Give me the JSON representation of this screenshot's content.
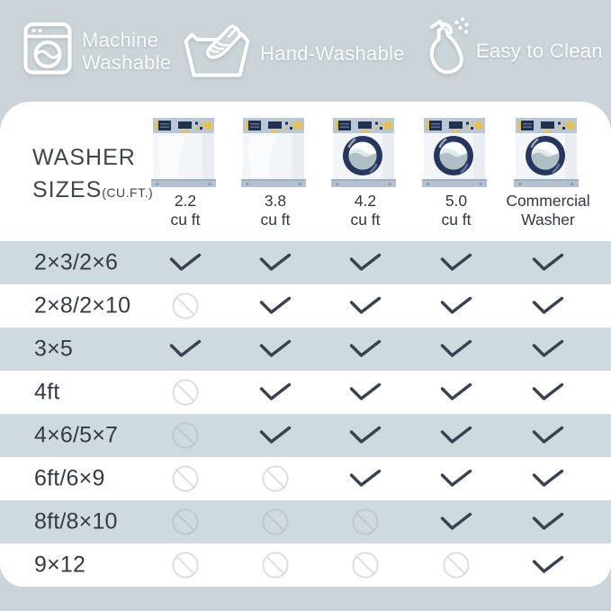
{
  "banner": {
    "items": [
      {
        "icon": "washing-machine-icon",
        "label_lines": [
          "Machine",
          "Washable"
        ]
      },
      {
        "icon": "hand-wash-icon",
        "label_lines": [
          "Hand-Washable"
        ]
      },
      {
        "icon": "spray-bottle-icon",
        "label_lines": [
          "Easy to Clean"
        ]
      }
    ]
  },
  "table": {
    "corner_title": {
      "line1": "WASHER",
      "line2": "SIZES",
      "suffix": "(CU.FT.)"
    },
    "columns": [
      {
        "washer_type": "top-load",
        "label_lines": [
          "2.2",
          "cu ft"
        ]
      },
      {
        "washer_type": "top-load",
        "label_lines": [
          "3.8",
          "cu ft"
        ]
      },
      {
        "washer_type": "front-load",
        "label_lines": [
          "4.2",
          "cu ft"
        ]
      },
      {
        "washer_type": "front-load",
        "label_lines": [
          "5.0",
          "cu ft"
        ]
      },
      {
        "washer_type": "front-load",
        "label_lines": [
          "Commercial",
          "Washer"
        ]
      }
    ],
    "rows": [
      {
        "label": "2×3/2×6",
        "cells": [
          "yes",
          "yes",
          "yes",
          "yes",
          "yes"
        ]
      },
      {
        "label": "2×8/2×10",
        "cells": [
          "no",
          "yes",
          "yes",
          "yes",
          "yes"
        ]
      },
      {
        "label": "3×5",
        "cells": [
          "yes",
          "yes",
          "yes",
          "yes",
          "yes"
        ]
      },
      {
        "label": "4ft",
        "cells": [
          "no",
          "yes",
          "yes",
          "yes",
          "yes"
        ]
      },
      {
        "label": "4×6/5×7",
        "cells": [
          "no",
          "yes",
          "yes",
          "yes",
          "yes"
        ]
      },
      {
        "label": "6ft/6×9",
        "cells": [
          "no",
          "no",
          "yes",
          "yes",
          "yes"
        ]
      },
      {
        "label": "8ft/8×10",
        "cells": [
          "no",
          "no",
          "no",
          "yes",
          "yes"
        ]
      },
      {
        "label": "9×12",
        "cells": [
          "no",
          "no",
          "no",
          "no",
          "yes"
        ]
      }
    ],
    "cell_icons": {
      "yes": "checkmark-icon",
      "no": "not-suitable-icon"
    }
  },
  "colors": {
    "background": "#cbd5d9",
    "card": "#ffffff",
    "row_alt": "#cfdade",
    "checkmark": "#3a424e",
    "no_symbol_on_white": "#dcdfe2",
    "no_symbol_on_gray": "#bdc7cc",
    "banner_text": "#fafbfb",
    "label_text": "#343b46"
  }
}
